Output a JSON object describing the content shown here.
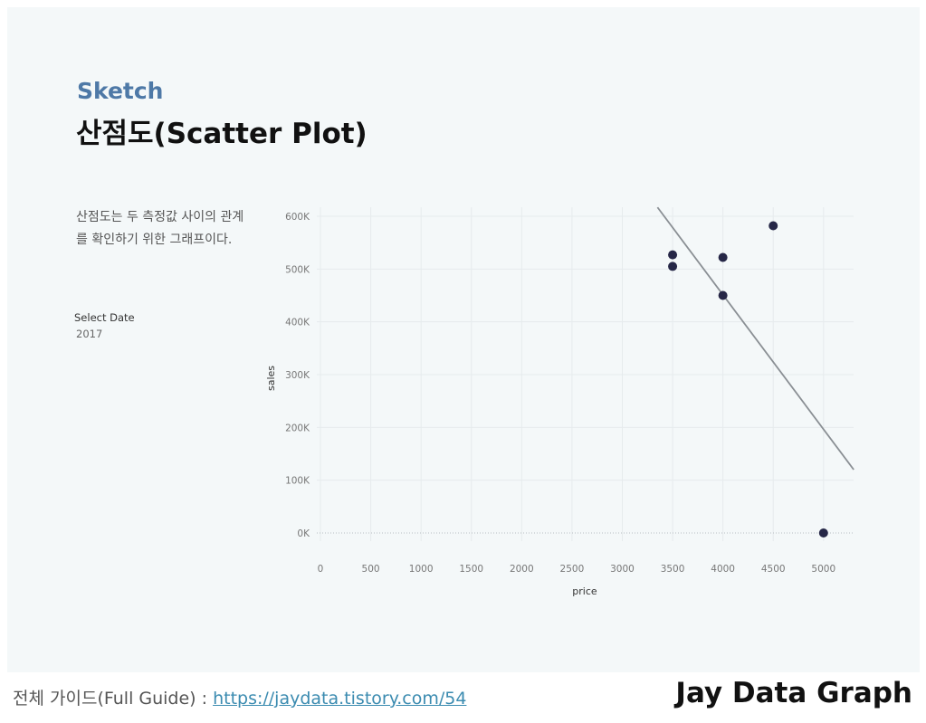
{
  "header": {
    "subtitle": "Sketch",
    "title": "산점도(Scatter Plot)"
  },
  "sidebar": {
    "description": "산점도는 두 측정값 사이의 관계를 확인하기 위한 그래프이다.",
    "filter_label": "Select Date",
    "filter_value": "2017"
  },
  "footer": {
    "guide_label": "전체 가이드(Full Guide) : ",
    "guide_link": "https://jaydata.tistory.com/54",
    "brand": "Jay Data Graph"
  },
  "colors": {
    "point": "#262747",
    "trend_line": "#8a8f94",
    "grid": "#e6ebed",
    "accent": "#4e79a7"
  },
  "chart_data": {
    "type": "scatter",
    "xlabel": "price",
    "ylabel": "sales",
    "xlim": [
      0,
      5300
    ],
    "ylim": [
      0,
      600000
    ],
    "x_ticks": [
      0,
      500,
      1000,
      1500,
      2000,
      2500,
      3000,
      3500,
      4000,
      4500,
      5000
    ],
    "y_ticks": [
      0,
      100000,
      200000,
      300000,
      400000,
      500000,
      600000
    ],
    "y_tick_labels": [
      "0K",
      "100K",
      "200K",
      "300K",
      "400K",
      "500K",
      "600K"
    ],
    "points": [
      {
        "x": 3500,
        "y": 527000
      },
      {
        "x": 3500,
        "y": 505000
      },
      {
        "x": 4000,
        "y": 522000
      },
      {
        "x": 4000,
        "y": 450000
      },
      {
        "x": 4500,
        "y": 582000
      },
      {
        "x": 5000,
        "y": 0
      }
    ],
    "trend_line": {
      "x1": 3350,
      "y1": 617000,
      "x2": 5300,
      "y2": 120000
    },
    "grid": true
  }
}
